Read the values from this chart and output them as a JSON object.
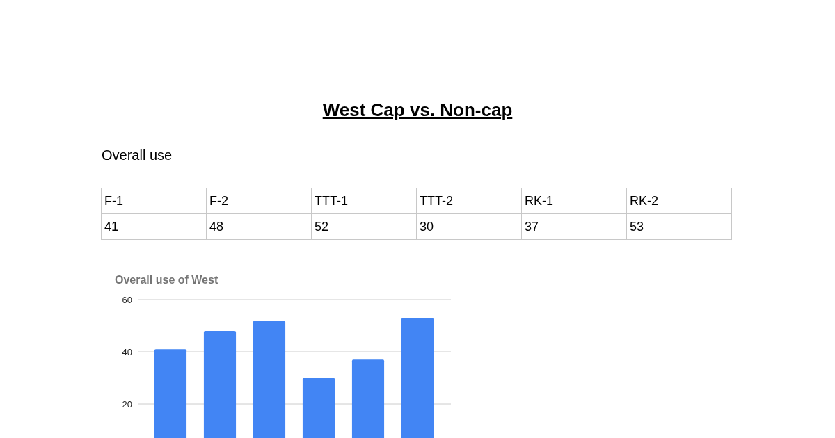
{
  "chart_data": [
    {
      "type": "other",
      "title": "West Cap vs. Non-cap",
      "subtitle": "Overall use",
      "categories": [
        "F-1",
        "F-2",
        "TTT-1",
        "TTT-2",
        "RK-1",
        "RK-2"
      ],
      "values": [
        41,
        48,
        52,
        30,
        37,
        53
      ],
      "data_labels": true
    },
    {
      "type": "bar",
      "title": "Overall use of West",
      "categories": [
        null,
        null,
        null,
        null,
        null,
        null
      ],
      "values": [
        41,
        48,
        52,
        30,
        37,
        53
      ],
      "color": "#4285f4",
      "ylim": [
        0,
        60
      ],
      "yticks": [
        20,
        40,
        60
      ],
      "grid": "y"
    }
  ]
}
